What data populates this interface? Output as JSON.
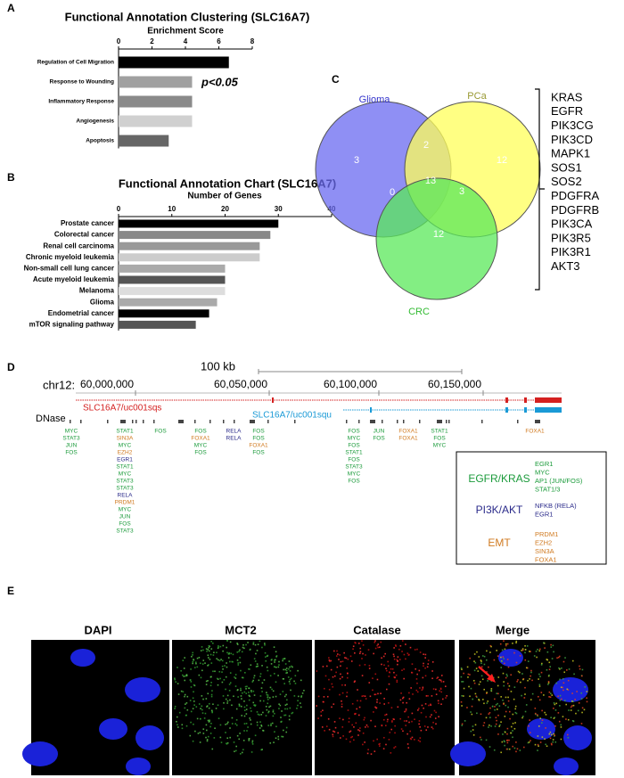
{
  "panels": [
    "A",
    "B",
    "C",
    "D",
    "E"
  ],
  "chart_data": [
    {
      "type": "bar",
      "orientation": "horizontal",
      "title": "Functional Annotation Clustering (SLC16A7)",
      "xlabel": "Enrichment Score",
      "categories": [
        "Regulation of Cell Migration",
        "Response to Wounding",
        "Inflammatory Response",
        "Angiogenesis",
        "Apoptosis"
      ],
      "values": [
        6.6,
        4.4,
        4.4,
        4.4,
        3.0
      ],
      "colors": [
        "#000000",
        "#a0a0a0",
        "#8a8a8a",
        "#d0d0d0",
        "#666666"
      ],
      "xlim": [
        0,
        8
      ],
      "xticks": [
        0,
        2,
        4,
        6,
        8
      ],
      "annotation": "p<0.05"
    },
    {
      "type": "bar",
      "orientation": "horizontal",
      "title": "Functional Annotation Chart (SLC16A7)",
      "xlabel": "Number of Genes",
      "categories": [
        "Prostate cancer",
        "Colorectal cancer",
        "Renal cell carcinoma",
        "Chronic myeloid leukemia",
        "Non-small cell lung cancer",
        "Acute myeloid leukemia",
        "Melanoma",
        "Glioma",
        "Endometrial cancer",
        "mTOR signaling pathway"
      ],
      "values": [
        30,
        28.5,
        26.5,
        26.5,
        20,
        20,
        20,
        18.5,
        17,
        14.5
      ],
      "colors": [
        "#000000",
        "#888888",
        "#999999",
        "#cccccc",
        "#aaaaaa",
        "#555555",
        "#dddddd",
        "#aaaaaa",
        "#000000",
        "#555555"
      ],
      "xlim": [
        0,
        40
      ],
      "xticks": [
        0,
        10,
        20,
        30,
        40
      ]
    }
  ],
  "venn": {
    "sets": [
      {
        "label": "Glioma",
        "color": "#6a6af0",
        "text_color": "#3333cc"
      },
      {
        "label": "PCa",
        "color": "#ffff5a",
        "text_color": "#999933"
      },
      {
        "label": "CRC",
        "color": "#5ae85a",
        "text_color": "#33bb33"
      }
    ],
    "regions": [
      3,
      2,
      12,
      0,
      13,
      3,
      12
    ]
  },
  "genes": [
    "KRAS",
    "EGFR",
    "PIK3CG",
    "PIK3CD",
    "MAPK1",
    "SOS1",
    "SOS2",
    "PDGFRA",
    "PDGFRB",
    "PIK3CA",
    "PIK3R5",
    "PIK3R1",
    "AKT3"
  ],
  "genome": {
    "scale": "100 kb",
    "chrom": "chr12:",
    "positions": [
      "60,000,000",
      "60,050,000",
      "60,100,000",
      "60,150,000"
    ],
    "transcripts": [
      {
        "label": "SLC16A7/uc001sqs",
        "color": "#d42020"
      },
      {
        "label": "SLC16A7/uc001squ",
        "color": "#1a9ad6"
      }
    ],
    "track": "DNase",
    "clusters": [
      [
        [
          "MYC",
          "g"
        ],
        [
          "STAT3",
          "g"
        ],
        [
          "JUN",
          "g"
        ],
        [
          "FOS",
          "g"
        ]
      ],
      [
        [
          "STAT1",
          "g"
        ],
        [
          "SIN3A",
          "o"
        ],
        [
          "MYC",
          "g"
        ],
        [
          "EZH2",
          "o"
        ],
        [
          "EGR1",
          "b"
        ],
        [
          "STAT1",
          "g"
        ],
        [
          "MYC",
          "g"
        ],
        [
          "STAT3",
          "g"
        ],
        [
          "STAT3",
          "g"
        ],
        [
          "RELA",
          "b"
        ],
        [
          "PRDM1",
          "o"
        ],
        [
          "MYC",
          "g"
        ],
        [
          "JUN",
          "g"
        ],
        [
          "FOS",
          "g"
        ],
        [
          "STAT3",
          "g"
        ]
      ],
      [
        [
          "FOS",
          "g"
        ]
      ],
      [
        [
          "FOS",
          "g"
        ],
        [
          "FOXA1",
          "o"
        ],
        [
          "MYC",
          "g"
        ],
        [
          "FOS",
          "g"
        ]
      ],
      [
        [
          "RELA",
          "b"
        ],
        [
          "RELA",
          "b"
        ]
      ],
      [
        [
          "FOS",
          "g"
        ],
        [
          "FOS",
          "g"
        ],
        [
          "FOXA1",
          "o"
        ],
        [
          "FOS",
          "g"
        ]
      ],
      [
        [
          "FOS",
          "g"
        ],
        [
          "MYC",
          "g"
        ],
        [
          "FOS",
          "g"
        ],
        [
          "STAT1",
          "g"
        ],
        [
          "FOS",
          "g"
        ],
        [
          "STAT3",
          "g"
        ],
        [
          "MYC",
          "g"
        ],
        [
          "FOS",
          "g"
        ]
      ],
      [
        [
          "JUN",
          "g"
        ],
        [
          "FOS",
          "g"
        ]
      ],
      [
        [
          "FOXA1",
          "o"
        ],
        [
          "FOXA1",
          "o"
        ]
      ],
      [
        [
          "STAT1",
          "g"
        ],
        [
          "FOS",
          "g"
        ],
        [
          "MYC",
          "g"
        ]
      ],
      [
        [
          "FOXA1",
          "o"
        ]
      ]
    ],
    "group_colors": {
      "g": "#1a9a3a",
      "b": "#2a2a8a",
      "o": "#d07a20"
    },
    "legend": [
      {
        "label": "EGFR/KRAS",
        "color": "#1a9a3a",
        "items": [
          "EGR1",
          "MYC",
          "AP1 (JUN/FOS)",
          "STAT1/3"
        ]
      },
      {
        "label": "PI3K/AKT",
        "color": "#2a2a8a",
        "items": [
          "NFKB (RELA)",
          "EGR1"
        ]
      },
      {
        "label": "EMT",
        "color": "#d07a20",
        "items": [
          "PRDM1",
          "EZH2",
          "SIN3A",
          "FOXA1"
        ]
      }
    ]
  },
  "microscopy": {
    "channels": [
      "DAPI",
      "MCT2",
      "Catalase",
      "Merge"
    ]
  }
}
